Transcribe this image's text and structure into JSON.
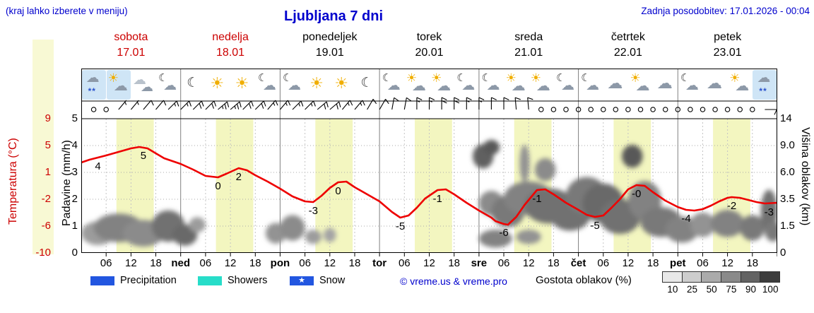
{
  "header": {
    "hint": "(kraj lahko izberete v meniju)",
    "title": "Ljubljana 7 dni",
    "updated": "Zadnja posodobitev: 17.01.2026 - 00:04"
  },
  "days": [
    {
      "name": "sobota",
      "date": "17.01",
      "highlight": true
    },
    {
      "name": "nedelja",
      "date": "18.01",
      "highlight": true
    },
    {
      "name": "ponedeljek",
      "date": "19.01",
      "highlight": false
    },
    {
      "name": "torek",
      "date": "20.01",
      "highlight": false
    },
    {
      "name": "sreda",
      "date": "21.01",
      "highlight": false
    },
    {
      "name": "četrtek",
      "date": "22.01",
      "highlight": false
    },
    {
      "name": "petek",
      "date": "23.01",
      "highlight": false
    }
  ],
  "axis": {
    "temp_label": "Temperatura (°C)",
    "precip_label": "Padavine (mm/h)",
    "km_label": "Višina oblakov (km)",
    "temp_ticks": [
      "9",
      "5",
      "1",
      "-2",
      "-6",
      "-10"
    ],
    "precip_ticks": [
      "5",
      "4",
      "3",
      "2",
      "1",
      "0"
    ],
    "km_ticks": [
      "14",
      "9.0",
      "6.0",
      "3.5",
      "1.5",
      "0"
    ],
    "x_hour_labels": [
      "06",
      "12",
      "18"
    ],
    "x_day_abbrs": [
      "ned",
      "pon",
      "tor",
      "sre",
      "čet",
      "pet"
    ]
  },
  "legend": {
    "precipitation": "Precipitation",
    "showers": "Showers",
    "snow": "Snow",
    "snow_star": "★",
    "copyright": "© vreme.us & vreme.pro",
    "cloud_scale_label": "Gostota oblakov (%)",
    "cloud_scale_values": [
      "10",
      "25",
      "50",
      "75",
      "90",
      "100"
    ]
  },
  "colors": {
    "text_blue": "#0000cd",
    "text_red": "#cc0000",
    "temp_line": "#ee0000",
    "day_band": "#f3f6c0",
    "colorbar": "#f8f9d4",
    "precipitation_swatch": "#2256e0",
    "showers_swatch": "#27ddc9",
    "snow_swatch": "#2256e0",
    "icon_bg": "#cfe5f6",
    "cloud_scale": [
      "#e8e8e8",
      "#cdcdcd",
      "#ababab",
      "#8a8a8a",
      "#636363",
      "#3d3d3d"
    ]
  },
  "chart_data": {
    "type": "line",
    "title": "Ljubljana 7 dni meteogram",
    "hours_total": 168,
    "temp_axis": {
      "min": -10,
      "max": 9
    },
    "km_axis_anchors": [
      [
        0,
        0
      ],
      [
        1.5,
        0.2
      ],
      [
        3.5,
        0.4
      ],
      [
        6,
        0.6
      ],
      [
        9,
        0.8
      ],
      [
        14,
        1.0
      ]
    ],
    "day_band_hours": [
      8.5,
      17.5
    ],
    "temperature_series": {
      "name": "Temperatura (°C)",
      "points": [
        [
          0,
          2.8
        ],
        [
          2,
          3.2
        ],
        [
          4,
          3.5
        ],
        [
          6,
          3.8
        ],
        [
          9,
          4.3
        ],
        [
          12,
          4.8
        ],
        [
          14,
          5.0
        ],
        [
          16,
          4.8
        ],
        [
          18,
          4.1
        ],
        [
          20,
          3.4
        ],
        [
          22,
          3.0
        ],
        [
          24,
          2.6
        ],
        [
          27,
          1.8
        ],
        [
          30,
          0.9
        ],
        [
          33,
          0.7
        ],
        [
          35,
          1.2
        ],
        [
          38,
          2.0
        ],
        [
          40,
          1.7
        ],
        [
          42,
          1.0
        ],
        [
          45,
          0.1
        ],
        [
          48,
          -0.9
        ],
        [
          51,
          -2.0
        ],
        [
          54,
          -2.7
        ],
        [
          56,
          -2.8
        ],
        [
          58,
          -1.9
        ],
        [
          60,
          -0.8
        ],
        [
          62,
          0.0
        ],
        [
          64,
          0.1
        ],
        [
          66,
          -0.7
        ],
        [
          69,
          -1.7
        ],
        [
          72,
          -2.7
        ],
        [
          75,
          -4.2
        ],
        [
          77,
          -5.0
        ],
        [
          79,
          -4.7
        ],
        [
          81,
          -3.6
        ],
        [
          83,
          -2.3
        ],
        [
          86,
          -1.1
        ],
        [
          88,
          -1.0
        ],
        [
          90,
          -1.7
        ],
        [
          93,
          -2.9
        ],
        [
          96,
          -4.0
        ],
        [
          99,
          -5.0
        ],
        [
          100,
          -5.5
        ],
        [
          102,
          -5.9
        ],
        [
          103,
          -6.0
        ],
        [
          105,
          -4.9
        ],
        [
          107,
          -3.2
        ],
        [
          109,
          -1.8
        ],
        [
          110,
          -1.1
        ],
        [
          112,
          -1.0
        ],
        [
          114,
          -1.7
        ],
        [
          117,
          -2.9
        ],
        [
          120,
          -3.9
        ],
        [
          122,
          -4.6
        ],
        [
          124,
          -4.9
        ],
        [
          126,
          -4.7
        ],
        [
          128,
          -3.6
        ],
        [
          130,
          -2.4
        ],
        [
          132,
          -1.0
        ],
        [
          134,
          -0.4
        ],
        [
          136,
          -0.5
        ],
        [
          138,
          -1.4
        ],
        [
          141,
          -2.6
        ],
        [
          144,
          -3.5
        ],
        [
          146,
          -3.9
        ],
        [
          148,
          -4.0
        ],
        [
          150,
          -3.8
        ],
        [
          152,
          -3.3
        ],
        [
          154,
          -2.7
        ],
        [
          156,
          -2.2
        ],
        [
          157,
          -2.1
        ],
        [
          159,
          -2.2
        ],
        [
          161,
          -2.5
        ],
        [
          163,
          -2.8
        ],
        [
          165,
          -3.0
        ],
        [
          168,
          -2.9
        ]
      ]
    },
    "temp_point_labels": [
      {
        "t": 4,
        "v": 3.5,
        "text": "4"
      },
      {
        "t": 15,
        "v": 5.0,
        "text": "5"
      },
      {
        "t": 33,
        "v": 0.7,
        "text": "0"
      },
      {
        "t": 38,
        "v": 2.0,
        "text": "2"
      },
      {
        "t": 56,
        "v": -2.8,
        "text": "-3"
      },
      {
        "t": 62,
        "v": 0.0,
        "text": "0"
      },
      {
        "t": 77,
        "v": -5.0,
        "text": "-5"
      },
      {
        "t": 86,
        "v": -1.1,
        "text": "-1"
      },
      {
        "t": 102,
        "v": -5.9,
        "text": "-6"
      },
      {
        "t": 110,
        "v": -1.1,
        "text": "-1"
      },
      {
        "t": 124,
        "v": -4.9,
        "text": "-5"
      },
      {
        "t": 134,
        "v": -0.4,
        "text": "-0"
      },
      {
        "t": 146,
        "v": -3.9,
        "text": "-4"
      },
      {
        "t": 157,
        "v": -2.1,
        "text": "-2"
      },
      {
        "t": 166,
        "v": -3.0,
        "text": "-3"
      }
    ],
    "clouds": [
      {
        "t": 4,
        "km": 1.1,
        "rt": 4,
        "rkm": 0.7,
        "o": 0.35
      },
      {
        "t": 9,
        "km": 1.4,
        "rt": 6,
        "rkm": 0.9,
        "o": 0.5
      },
      {
        "t": 15,
        "km": 1.1,
        "rt": 5,
        "rkm": 0.8,
        "o": 0.45
      },
      {
        "t": 21,
        "km": 1.5,
        "rt": 4,
        "rkm": 1.0,
        "o": 0.6
      },
      {
        "t": 25,
        "km": 1.0,
        "rt": 3,
        "rkm": 0.6,
        "o": 0.65
      },
      {
        "t": 28,
        "km": 1.6,
        "rt": 2,
        "rkm": 0.5,
        "o": 0.35
      },
      {
        "t": 47,
        "km": 1.1,
        "rt": 2.5,
        "rkm": 0.6,
        "o": 0.4
      },
      {
        "t": 51,
        "km": 1.4,
        "rt": 3,
        "rkm": 0.8,
        "o": 0.45
      },
      {
        "t": 56,
        "km": 0.9,
        "rt": 2,
        "rkm": 0.4,
        "o": 0.35
      },
      {
        "t": 60,
        "km": 1.0,
        "rt": 1.5,
        "rkm": 0.4,
        "o": 0.3
      },
      {
        "t": 97,
        "km": 7.8,
        "rt": 2.5,
        "rkm": 1.4,
        "o": 0.7
      },
      {
        "t": 99,
        "km": 8.8,
        "rt": 2,
        "rkm": 1.0,
        "o": 0.75
      },
      {
        "t": 99,
        "km": 3.2,
        "rt": 3,
        "rkm": 1.0,
        "o": 0.45
      },
      {
        "t": 100,
        "km": 0.8,
        "rt": 4,
        "rkm": 0.5,
        "o": 0.5
      },
      {
        "t": 103,
        "km": 2.6,
        "rt": 4,
        "rkm": 1.2,
        "o": 0.55
      },
      {
        "t": 107,
        "km": 7.0,
        "rt": 1.2,
        "rkm": 2.0,
        "o": 0.4
      },
      {
        "t": 108,
        "km": 0.9,
        "rt": 3,
        "rkm": 0.4,
        "o": 0.4
      },
      {
        "t": 108,
        "km": 3.6,
        "rt": 6,
        "rkm": 1.4,
        "o": 0.5
      },
      {
        "t": 112,
        "km": 6.3,
        "rt": 2.5,
        "rkm": 1.2,
        "o": 0.45
      },
      {
        "t": 113,
        "km": 3.0,
        "rt": 6,
        "rkm": 1.4,
        "o": 0.6
      },
      {
        "t": 118,
        "km": 2.4,
        "rt": 5,
        "rkm": 1.2,
        "o": 0.6
      },
      {
        "t": 122,
        "km": 3.8,
        "rt": 5,
        "rkm": 1.6,
        "o": 0.55
      },
      {
        "t": 126,
        "km": 3.2,
        "rt": 5,
        "rkm": 1.6,
        "o": 0.65
      },
      {
        "t": 130,
        "km": 2.2,
        "rt": 5,
        "rkm": 1.2,
        "o": 0.6
      },
      {
        "t": 133,
        "km": 7.8,
        "rt": 2.5,
        "rkm": 1.3,
        "o": 0.75
      },
      {
        "t": 136,
        "km": 3.4,
        "rt": 4,
        "rkm": 1.6,
        "o": 0.5
      },
      {
        "t": 140,
        "km": 1.8,
        "rt": 5,
        "rkm": 1.0,
        "o": 0.55
      },
      {
        "t": 145,
        "km": 1.3,
        "rt": 4,
        "rkm": 0.8,
        "o": 0.5
      },
      {
        "t": 150,
        "km": 1.6,
        "rt": 3,
        "rkm": 0.8,
        "o": 0.4
      },
      {
        "t": 156,
        "km": 1.7,
        "rt": 4,
        "rkm": 0.9,
        "o": 0.5
      },
      {
        "t": 162,
        "km": 1.4,
        "rt": 3,
        "rkm": 0.8,
        "o": 0.55
      },
      {
        "t": 166,
        "km": 2.6,
        "rt": 2,
        "rkm": 1.6,
        "o": 0.6
      },
      {
        "t": 167,
        "km": 1.2,
        "rt": 2,
        "rkm": 0.6,
        "o": 0.55
      }
    ],
    "wind": [
      {
        "calm": true
      },
      {
        "d": 40,
        "s": 5
      },
      {
        "d": 40,
        "s": 10
      },
      {
        "d": 45,
        "s": 15
      },
      {
        "d": 45,
        "s": 20
      },
      {
        "d": 50,
        "s": 25
      },
      {
        "d": 45,
        "s": 20
      },
      {
        "d": 40,
        "s": 15
      },
      {
        "d": 45,
        "s": 15
      },
      {
        "d": 50,
        "s": 20
      },
      {
        "d": 40,
        "s": 15
      },
      {
        "d": 30,
        "s": 10
      },
      {
        "d": 10,
        "s": 10
      },
      {
        "d": 0,
        "s": 15
      },
      {
        "d": 0,
        "s": 20
      },
      {
        "d": 0,
        "s": 15
      },
      {
        "d": 0,
        "s": 10
      },
      {
        "d": 355,
        "s": 10
      },
      {
        "calm": true
      },
      {
        "calm": true
      },
      {
        "calm": true
      },
      {
        "calm": true
      },
      {
        "calm": true
      },
      {
        "calm": true
      },
      {
        "calm": true
      },
      {
        "calm": true
      },
      {
        "calm": true
      },
      {
        "d": 90,
        "s": 10
      }
    ],
    "icons": [
      {
        "type": "snow-fog",
        "bg": true
      },
      {
        "type": "sun-cloud",
        "bg": true
      },
      {
        "type": "clouds",
        "bg": false
      },
      {
        "type": "moon-cloud",
        "bg": false
      },
      {
        "type": "moon",
        "bg": false
      },
      {
        "type": "sun",
        "bg": false
      },
      {
        "type": "sun",
        "bg": false
      },
      {
        "type": "moon-cloud",
        "bg": false
      },
      {
        "type": "moon-cloud",
        "bg": false
      },
      {
        "type": "sun",
        "bg": false
      },
      {
        "type": "sun",
        "bg": false
      },
      {
        "type": "moon",
        "bg": false
      },
      {
        "type": "moon-cloud",
        "bg": false
      },
      {
        "type": "sun-cloud",
        "bg": false
      },
      {
        "type": "sun-cloud",
        "bg": false
      },
      {
        "type": "moon-cloud",
        "bg": false
      },
      {
        "type": "moon-cloud",
        "bg": false
      },
      {
        "type": "sun-cloud",
        "bg": false
      },
      {
        "type": "sun-cloud",
        "bg": false
      },
      {
        "type": "moon-cloud",
        "bg": false
      },
      {
        "type": "moon-cloud",
        "bg": false
      },
      {
        "type": "cloud",
        "bg": false
      },
      {
        "type": "sun-cloud",
        "bg": false
      },
      {
        "type": "cloud",
        "bg": false
      },
      {
        "type": "moon-cloud",
        "bg": false
      },
      {
        "type": "cloud",
        "bg": false
      },
      {
        "type": "sun-cloud",
        "bg": false
      },
      {
        "type": "cloud-snow",
        "bg": true
      }
    ]
  }
}
